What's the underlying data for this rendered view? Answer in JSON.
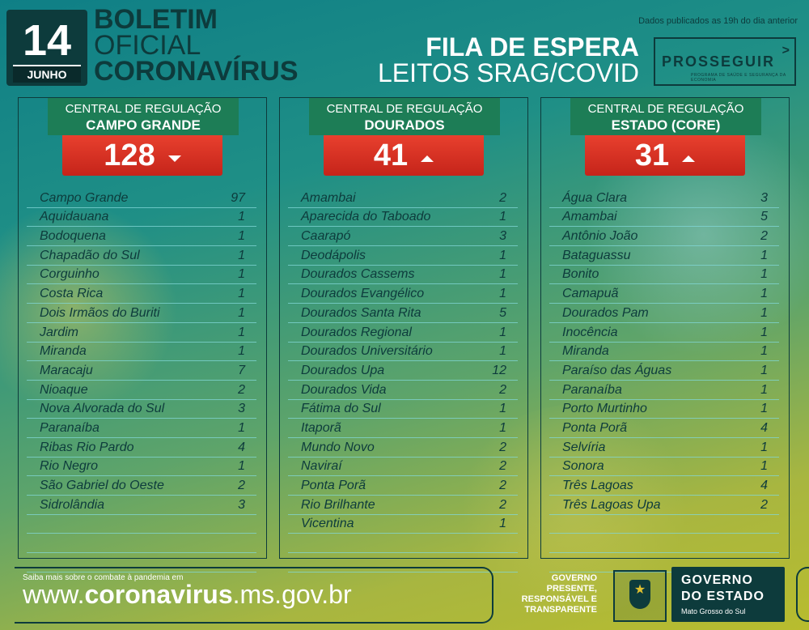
{
  "header": {
    "day": "14",
    "month": "JUNHO",
    "title_line1": "BOLETIM",
    "title_line2": "OFICIAL",
    "title_line3": "CORONAVÍRUS",
    "published_note": "Dados publicados as 19h do dia anterior",
    "fila_line1": "FILA DE ESPERA",
    "fila_line2": "LEITOS SRAG/COVID",
    "program_logo": "PROSSEGUIR",
    "program_sub": "PROGRAMA DE SAÚDE E SEGURANÇA DA ECONOMIA"
  },
  "panels": [
    {
      "label_line1": "CENTRAL DE REGULAÇÃO",
      "label_line2": "CAMPO GRANDE",
      "total": "128",
      "trend": "down",
      "rows": [
        {
          "city": "Campo Grande",
          "count": "97"
        },
        {
          "city": "Aquidauana",
          "count": "1"
        },
        {
          "city": "Bodoquena",
          "count": "1"
        },
        {
          "city": "Chapadão do Sul",
          "count": "1"
        },
        {
          "city": "Corguinho",
          "count": "1"
        },
        {
          "city": "Costa Rica",
          "count": "1"
        },
        {
          "city": "Dois Irmãos do Buriti",
          "count": "1"
        },
        {
          "city": "Jardim",
          "count": "1"
        },
        {
          "city": "Miranda",
          "count": "1"
        },
        {
          "city": "Maracaju",
          "count": "7"
        },
        {
          "city": "Nioaque",
          "count": "2"
        },
        {
          "city": "Nova Alvorada do Sul",
          "count": "3"
        },
        {
          "city": "Paranaíba",
          "count": "1"
        },
        {
          "city": "Ribas Rio Pardo",
          "count": "4"
        },
        {
          "city": "Rio Negro",
          "count": "1"
        },
        {
          "city": "São Gabriel do Oeste",
          "count": "2"
        },
        {
          "city": "Sidrolândia",
          "count": "3"
        },
        {
          "city": "",
          "count": ""
        },
        {
          "city": "",
          "count": ""
        },
        {
          "city": "",
          "count": ""
        }
      ]
    },
    {
      "label_line1": "CENTRAL DE REGULAÇÃO",
      "label_line2": "DOURADOS",
      "total": "41",
      "trend": "up",
      "rows": [
        {
          "city": "Amambai",
          "count": "2"
        },
        {
          "city": "Aparecida do Taboado",
          "count": "1"
        },
        {
          "city": "Caarapó",
          "count": "3"
        },
        {
          "city": "Deodápolis",
          "count": "1"
        },
        {
          "city": "Dourados Cassems",
          "count": "1"
        },
        {
          "city": "Dourados Evangélico",
          "count": "1"
        },
        {
          "city": "Dourados Santa Rita",
          "count": "5"
        },
        {
          "city": "Dourados Regional",
          "count": "1"
        },
        {
          "city": "Dourados Universitário",
          "count": "1"
        },
        {
          "city": "Dourados Upa",
          "count": "12"
        },
        {
          "city": "Dourados Vida",
          "count": "2"
        },
        {
          "city": "Fátima do Sul",
          "count": "1"
        },
        {
          "city": "Itaporã",
          "count": "1"
        },
        {
          "city": "Mundo Novo",
          "count": "2"
        },
        {
          "city": "Naviraí",
          "count": "2"
        },
        {
          "city": "Ponta Porã",
          "count": "2"
        },
        {
          "city": "Rio Brilhante",
          "count": "2"
        },
        {
          "city": "Vicentina",
          "count": "1"
        },
        {
          "city": "",
          "count": ""
        },
        {
          "city": "",
          "count": ""
        }
      ]
    },
    {
      "label_line1": "CENTRAL DE REGULAÇÃO",
      "label_line2": "ESTADO (CORE)",
      "total": "31",
      "trend": "up",
      "rows": [
        {
          "city": "Água Clara",
          "count": "3"
        },
        {
          "city": "Amambai",
          "count": "5"
        },
        {
          "city": "Antônio João",
          "count": "2"
        },
        {
          "city": "Bataguassu",
          "count": "1"
        },
        {
          "city": "Bonito",
          "count": "1"
        },
        {
          "city": "Camapuã",
          "count": "1"
        },
        {
          "city": "Dourados Pam",
          "count": "1"
        },
        {
          "city": "Inocência",
          "count": "1"
        },
        {
          "city": "Miranda",
          "count": "1"
        },
        {
          "city": "Paraíso das Águas",
          "count": "1"
        },
        {
          "city": "Paranaíba",
          "count": "1"
        },
        {
          "city": "Porto Murtinho",
          "count": "1"
        },
        {
          "city": "Ponta Porã",
          "count": "4"
        },
        {
          "city": "Selvíria",
          "count": "1"
        },
        {
          "city": "Sonora",
          "count": "1"
        },
        {
          "city": "Três Lagoas",
          "count": "4"
        },
        {
          "city": "Três Lagoas Upa",
          "count": "2"
        },
        {
          "city": "",
          "count": ""
        },
        {
          "city": "",
          "count": ""
        },
        {
          "city": "",
          "count": ""
        }
      ]
    }
  ],
  "footer": {
    "small_text": "Saiba mais sobre o combate à pandemia em",
    "url_prefix": "www.",
    "url_bold": "coronavirus",
    "url_suffix": ".ms.gov.br",
    "slogan_1": "GOVERNO",
    "slogan_2": "PRESENTE,",
    "slogan_3": "RESPONSÁVEL E",
    "slogan_4": "TRANSPARENTE",
    "gov_line1": "GOVERNO",
    "gov_line2": "DO ESTADO",
    "gov_line3": "Mato Grosso do Sul"
  }
}
